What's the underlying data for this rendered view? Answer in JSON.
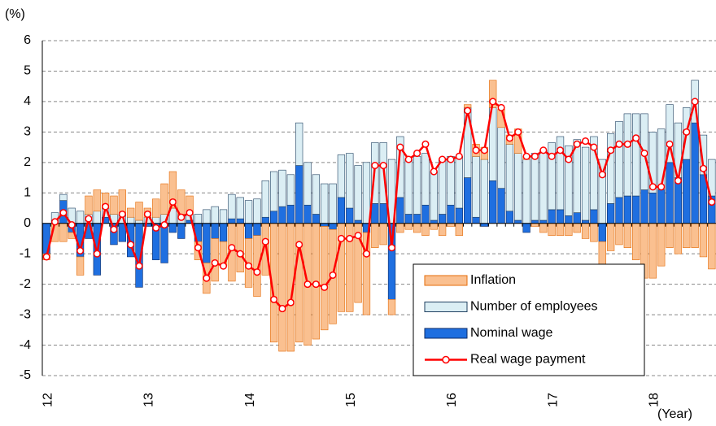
{
  "chart_data": {
    "type": "bar",
    "y_label": "(%)",
    "x_label": "(Year)",
    "categories": [
      "12",
      null,
      null,
      null,
      null,
      null,
      null,
      null,
      null,
      null,
      null,
      null,
      "13",
      null,
      null,
      null,
      null,
      null,
      null,
      null,
      null,
      null,
      null,
      null,
      "14",
      null,
      null,
      null,
      null,
      null,
      null,
      null,
      null,
      null,
      null,
      null,
      "15",
      null,
      null,
      null,
      null,
      null,
      null,
      null,
      null,
      null,
      null,
      null,
      "16",
      null,
      null,
      null,
      null,
      null,
      null,
      null,
      null,
      null,
      null,
      null,
      "17",
      null,
      null,
      null,
      null,
      null,
      null,
      null,
      null,
      null,
      null,
      null,
      "18",
      null,
      null,
      null,
      null,
      null,
      null,
      null
    ],
    "series": [
      {
        "name": "Inflation",
        "type": "bar",
        "color": "#fac090",
        "stroke": "#e46c0a",
        "values": [
          -0.2,
          -0.6,
          -0.6,
          -0.2,
          -0.6,
          0.6,
          0.7,
          0.5,
          0.6,
          0.8,
          0.3,
          0.6,
          0.3,
          0.6,
          1.0,
          1.2,
          0.8,
          0.6,
          -0.6,
          -1.0,
          -1.4,
          -0.8,
          -1.9,
          -1.6,
          -1.6,
          -2.0,
          -1.7,
          -3.9,
          -4.2,
          -4.2,
          -3.9,
          -4.0,
          -3.8,
          -3.4,
          -3.1,
          -2.9,
          -2.9,
          -2.6,
          -2.7,
          -0.8,
          -0.7,
          -0.5,
          -0.3,
          -0.2,
          -0.3,
          -0.4,
          -0.2,
          -0.4,
          -0.1,
          -0.4,
          0.1,
          0.4,
          0.4,
          0.9,
          0.6,
          0.3,
          0.8,
          0.1,
          -0.1,
          -0.3,
          -0.4,
          -0.4,
          -0.4,
          -0.3,
          -0.5,
          -0.6,
          -1.1,
          -0.9,
          -0.7,
          -0.8,
          -1.2,
          -1.8,
          -1.8,
          -1.4,
          -0.8,
          -1.0,
          -0.8,
          -0.8,
          -1.1,
          -1.5
        ]
      },
      {
        "name": "Number of employees",
        "type": "bar",
        "color": "#dbeef4",
        "stroke": "#1f3f5f",
        "values": [
          0,
          0.25,
          0.2,
          0.5,
          0.4,
          0.3,
          0.4,
          0.3,
          0.3,
          0.3,
          0.2,
          0.1,
          0.2,
          0.2,
          0.3,
          0.5,
          0.3,
          0.2,
          0.3,
          0.45,
          0.55,
          0.45,
          0.8,
          0.7,
          0.75,
          0.8,
          1.2,
          1.3,
          1.2,
          1.0,
          1.4,
          1.4,
          1.3,
          1.3,
          1.3,
          1.4,
          1.8,
          1.8,
          2.0,
          2.0,
          2.0,
          2.1,
          2.0,
          1.8,
          1.9,
          1.7,
          1.6,
          1.8,
          1.6,
          1.7,
          2.3,
          2.0,
          2.1,
          2.4,
          2.0,
          2.2,
          2.2,
          2.1,
          2.2,
          2.3,
          2.2,
          2.4,
          2.3,
          2.4,
          2.4,
          2.4,
          2.1,
          2.3,
          2.5,
          2.7,
          2.7,
          2.5,
          2.0,
          2.0,
          1.9,
          1.8,
          1.7,
          1.4,
          1.3,
          1.2
        ]
      },
      {
        "name": "Nominal wage",
        "type": "bar",
        "color": "#1f6fe0",
        "stroke": "#0b2a66",
        "values": [
          -1.0,
          0.1,
          0.75,
          -0.3,
          -1.1,
          -0.5,
          -1.7,
          0.2,
          -0.7,
          -0.6,
          -1.1,
          -2.1,
          -0.1,
          -1.2,
          -1.3,
          -0.3,
          -0.5,
          0.1,
          -0.6,
          -1.3,
          -0.5,
          -0.6,
          0.15,
          0.15,
          -0.5,
          -0.4,
          0.2,
          0.4,
          0.55,
          0.6,
          1.9,
          0.6,
          0.3,
          -0.1,
          -0.2,
          0.85,
          0.5,
          0.1,
          -0.3,
          0.65,
          0.65,
          -2.5,
          0.85,
          0.3,
          0.3,
          0.6,
          0.1,
          0.3,
          0.6,
          0.5,
          1.5,
          0.2,
          -0.1,
          1.4,
          1.15,
          0.4,
          0.1,
          -0.3,
          0.1,
          0.1,
          0.45,
          0.45,
          0.25,
          0.35,
          0.1,
          0.45,
          -0.6,
          0.65,
          0.85,
          0.9,
          0.9,
          1.1,
          1.0,
          1.1,
          2.0,
          1.5,
          2.1,
          3.3,
          1.6,
          0.9
        ]
      },
      {
        "name": "Real wage payment",
        "type": "line",
        "color": "#ff0000",
        "values": [
          -1.1,
          0.05,
          0.35,
          -0.05,
          -0.9,
          0.15,
          -1.0,
          0.55,
          -0.2,
          0.3,
          -0.7,
          -1.4,
          0.3,
          -0.15,
          -0.05,
          0.7,
          0.2,
          0.35,
          -0.8,
          -1.8,
          -1.3,
          -1.4,
          -0.8,
          -1.0,
          -1.4,
          -1.6,
          -0.6,
          -2.5,
          -2.8,
          -2.6,
          -0.7,
          -2.0,
          -2.0,
          -2.1,
          -1.7,
          -0.5,
          -0.5,
          -0.4,
          -1.0,
          1.9,
          1.9,
          -0.8,
          2.5,
          2.1,
          2.3,
          2.6,
          1.7,
          2.1,
          2.1,
          2.2,
          3.7,
          2.4,
          2.4,
          4.0,
          3.8,
          2.8,
          3.0,
          2.2,
          2.2,
          2.4,
          2.2,
          2.4,
          2.1,
          2.6,
          2.7,
          2.5,
          1.6,
          2.4,
          2.6,
          2.6,
          2.8,
          2.3,
          1.2,
          1.2,
          2.6,
          1.4,
          3.0,
          4.0,
          1.8,
          0.7
        ]
      }
    ],
    "ylim": [
      -5,
      6
    ],
    "yticks": [
      -5,
      -4,
      -3,
      -2,
      -1,
      0,
      1,
      2,
      3,
      4,
      5,
      6
    ],
    "grid": true
  }
}
